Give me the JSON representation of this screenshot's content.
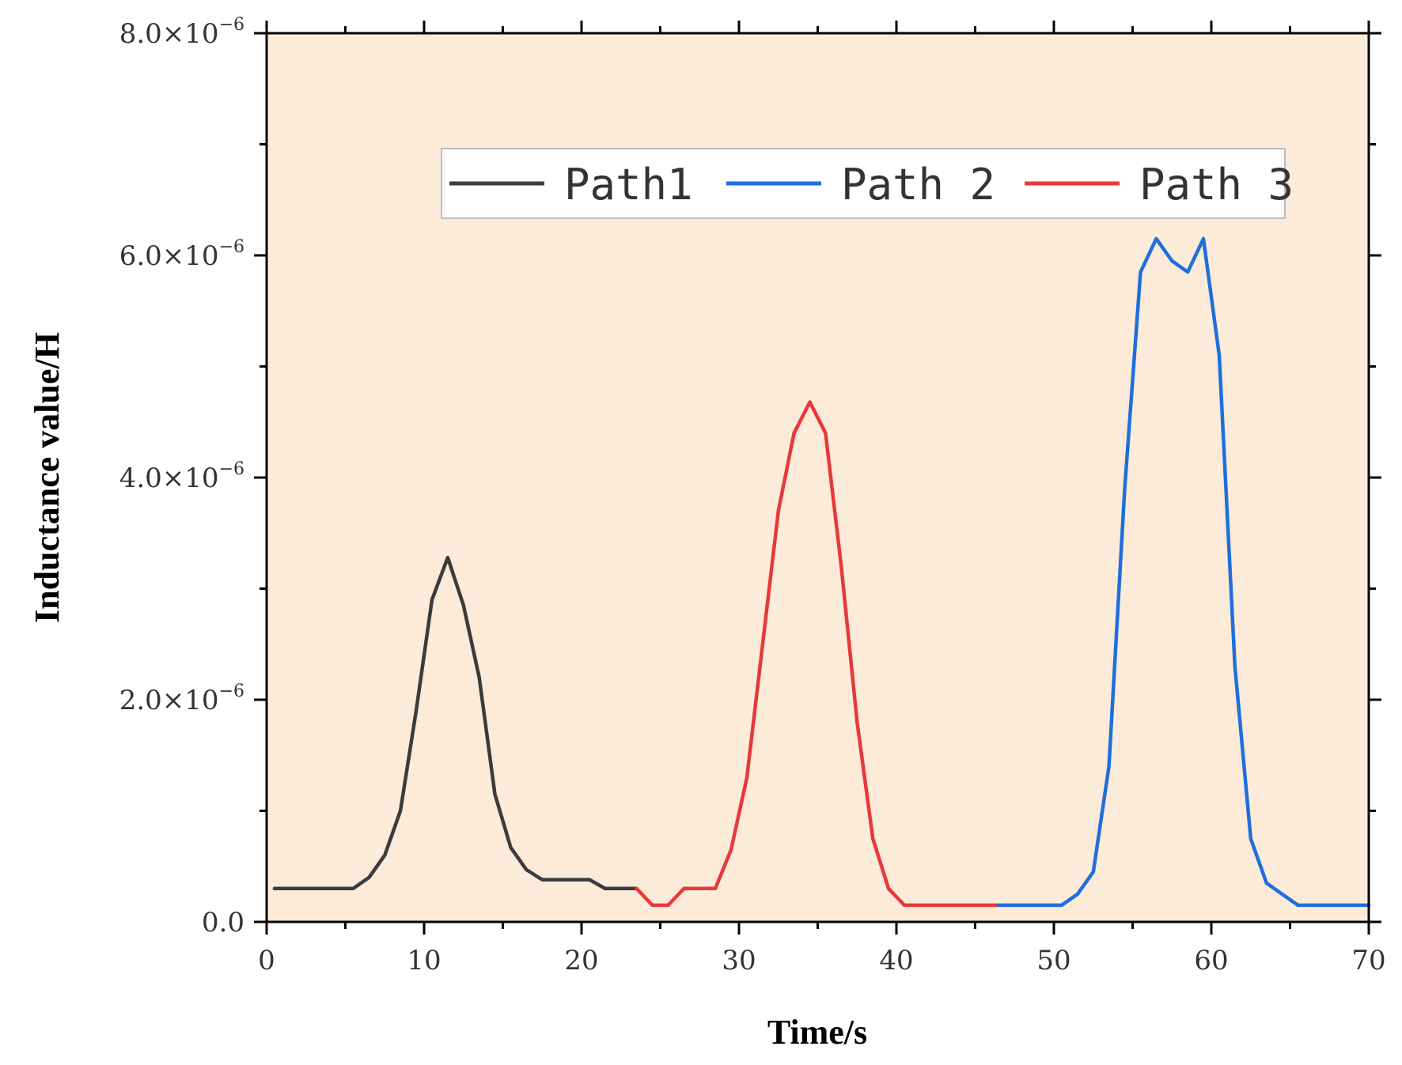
{
  "chart_data": {
    "type": "line",
    "xlabel": "Time/s",
    "ylabel": "Inductance value/H",
    "xlim": [
      0,
      70
    ],
    "ylim": [
      0,
      8e-06
    ],
    "x_ticks": [
      0,
      10,
      20,
      30,
      40,
      50,
      60,
      70
    ],
    "x_tick_labels": [
      "0",
      "10",
      "20",
      "30",
      "40",
      "50",
      "60",
      "70"
    ],
    "y_ticks": [
      0,
      2e-06,
      4e-06,
      6e-06,
      8e-06
    ],
    "y_tick_labels": [
      {
        "mantissa": "0.0",
        "exponent": ""
      },
      {
        "mantissa": "2.0×10",
        "exponent": "−6"
      },
      {
        "mantissa": "4.0×10",
        "exponent": "−6"
      },
      {
        "mantissa": "6.0×10",
        "exponent": "−6"
      },
      {
        "mantissa": "8.0×10",
        "exponent": "−6"
      }
    ],
    "grid": false,
    "legend_position": "top-right",
    "background_color": "#fcebd9",
    "series": [
      {
        "name": "Path1",
        "color": "#3b3b3b",
        "x": [
          0.5,
          5.5,
          6.5,
          7.5,
          8.5,
          9.5,
          10.5,
          11.5,
          12.5,
          13.5,
          14.5,
          15.5,
          16.5,
          17.5,
          18.5,
          19.5,
          20.5,
          21.5,
          22.5,
          23.5
        ],
        "y": [
          3e-07,
          3e-07,
          4e-07,
          6e-07,
          1e-06,
          1.9e-06,
          2.9e-06,
          3.28e-06,
          2.85e-06,
          2.2e-06,
          1.15e-06,
          6.7e-07,
          4.7e-07,
          3.8e-07,
          3.8e-07,
          3.8e-07,
          3.8e-07,
          3e-07,
          3e-07,
          3e-07
        ]
      },
      {
        "name": "Path 3",
        "color": "#e8383a",
        "x": [
          23.5,
          24.5,
          25.5,
          26.5,
          27.5,
          28.5,
          29.5,
          30.5,
          31.5,
          32.5,
          33.5,
          34.5,
          35.5,
          36.5,
          37.5,
          38.5,
          39.5,
          40.5,
          46.5
        ],
        "y": [
          3e-07,
          1.5e-07,
          1.5e-07,
          3e-07,
          3e-07,
          3e-07,
          6.5e-07,
          1.3e-06,
          2.5e-06,
          3.7e-06,
          4.4e-06,
          4.68e-06,
          4.4e-06,
          3.2e-06,
          1.8e-06,
          7.5e-07,
          3e-07,
          1.5e-07,
          1.5e-07
        ]
      },
      {
        "name": "Path 2",
        "color": "#1f6fdc",
        "x": [
          46.5,
          50.5,
          51.5,
          52.5,
          53.5,
          54.5,
          55.5,
          56.5,
          57.5,
          58.5,
          59.5,
          60.5,
          61.5,
          62.5,
          63.5,
          64.5,
          65.5,
          66.5,
          70
        ],
        "y": [
          1.5e-07,
          1.5e-07,
          2.5e-07,
          4.5e-07,
          1.4e-06,
          3.9e-06,
          5.85e-06,
          6.15e-06,
          5.95e-06,
          5.85e-06,
          6.15e-06,
          5.1e-06,
          2.3e-06,
          7.5e-07,
          3.5e-07,
          2.5e-07,
          1.5e-07,
          1.5e-07,
          1.5e-07
        ]
      }
    ],
    "legend_order": [
      "Path1",
      "Path 2",
      "Path 3"
    ]
  }
}
